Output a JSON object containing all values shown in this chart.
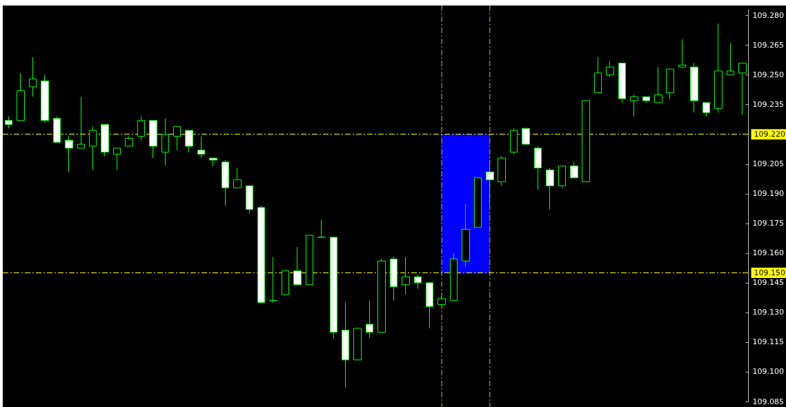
{
  "chart_data": {
    "type": "candlestick",
    "color": "#00ff00",
    "categories": [
      null,
      null,
      null,
      null,
      null,
      null,
      null,
      null,
      null,
      null,
      null,
      null,
      null,
      null,
      null,
      null,
      null,
      null,
      null,
      null,
      null,
      null,
      null,
      null,
      null,
      null,
      null,
      null,
      null,
      null,
      null,
      null,
      null,
      null,
      null,
      null,
      null,
      null,
      null,
      null,
      null,
      null,
      null,
      null,
      null,
      null,
      null,
      null,
      null,
      null,
      null,
      null,
      null,
      null,
      null,
      null,
      null,
      null,
      null,
      null,
      null,
      null
    ],
    "ohlc": [
      [
        109.227,
        109.229,
        109.223,
        109.225
      ],
      [
        109.227,
        109.251,
        109.227,
        109.242
      ],
      [
        109.244,
        109.259,
        109.239,
        109.248
      ],
      [
        109.247,
        109.25,
        109.226,
        109.227
      ],
      [
        109.228,
        109.229,
        109.216,
        109.216
      ],
      [
        109.217,
        109.219,
        109.201,
        109.213
      ],
      [
        109.213,
        109.239,
        109.213,
        109.215
      ],
      [
        109.214,
        109.224,
        109.202,
        109.222
      ],
      [
        109.225,
        109.225,
        109.209,
        109.211
      ],
      [
        109.21,
        109.213,
        109.202,
        109.213
      ],
      [
        109.214,
        109.219,
        109.214,
        109.218
      ],
      [
        109.219,
        109.229,
        109.217,
        109.227
      ],
      [
        109.227,
        109.227,
        109.208,
        109.214
      ],
      [
        109.211,
        109.228,
        109.204,
        109.22
      ],
      [
        109.219,
        109.224,
        109.212,
        109.224
      ],
      [
        109.222,
        109.222,
        109.211,
        109.214
      ],
      [
        109.212,
        109.219,
        109.208,
        109.21
      ],
      [
        109.208,
        109.208,
        109.204,
        109.207
      ],
      [
        109.206,
        109.207,
        109.184,
        109.193
      ],
      [
        109.193,
        109.203,
        109.193,
        109.197
      ],
      [
        109.194,
        109.194,
        109.18,
        109.182
      ],
      [
        109.183,
        109.184,
        109.135,
        109.135
      ],
      [
        109.136,
        109.158,
        109.135,
        109.136
      ],
      [
        109.139,
        109.151,
        109.139,
        109.151
      ],
      [
        109.151,
        109.163,
        109.144,
        109.144
      ],
      [
        109.144,
        109.169,
        109.144,
        109.169
      ],
      [
        109.168,
        109.177,
        109.168,
        109.168
      ],
      [
        109.168,
        109.168,
        109.117,
        109.12
      ],
      [
        109.121,
        109.135,
        109.092,
        109.106
      ],
      [
        109.106,
        109.122,
        109.106,
        109.122
      ],
      [
        109.124,
        109.136,
        109.117,
        109.12
      ],
      [
        109.12,
        109.157,
        109.12,
        109.156
      ],
      [
        109.157,
        109.158,
        109.136,
        109.143
      ],
      [
        109.144,
        109.158,
        109.139,
        109.148
      ],
      [
        109.148,
        109.149,
        109.142,
        109.145
      ],
      [
        109.145,
        109.145,
        109.122,
        109.133
      ],
      [
        109.134,
        109.138,
        109.134,
        109.137
      ],
      [
        109.136,
        109.16,
        109.136,
        109.157
      ],
      [
        109.156,
        109.185,
        109.153,
        109.172
      ],
      [
        109.173,
        109.198,
        109.173,
        109.198
      ],
      [
        109.201,
        109.205,
        109.185,
        109.197
      ],
      [
        109.196,
        109.209,
        109.194,
        109.208
      ],
      [
        109.211,
        109.223,
        109.21,
        109.222
      ],
      [
        109.223,
        109.223,
        109.215,
        109.215
      ],
      [
        109.213,
        109.214,
        109.192,
        109.203
      ],
      [
        109.202,
        109.203,
        109.182,
        109.194
      ],
      [
        109.194,
        109.204,
        109.193,
        109.204
      ],
      [
        109.204,
        109.206,
        109.198,
        109.198
      ],
      [
        109.196,
        109.237,
        109.196,
        109.237
      ],
      [
        109.241,
        109.259,
        109.241,
        109.251
      ],
      [
        109.25,
        109.257,
        109.249,
        109.254
      ],
      [
        109.256,
        109.256,
        109.236,
        109.238
      ],
      [
        109.237,
        109.24,
        109.229,
        109.239
      ],
      [
        109.239,
        109.239,
        109.236,
        109.237
      ],
      [
        109.236,
        109.254,
        109.236,
        109.24
      ],
      [
        109.241,
        109.253,
        109.238,
        109.253
      ],
      [
        109.254,
        109.268,
        109.254,
        109.255
      ],
      [
        109.254,
        109.256,
        109.231,
        109.237
      ],
      [
        109.236,
        109.236,
        109.229,
        109.231
      ],
      [
        109.233,
        109.276,
        109.231,
        109.252
      ],
      [
        109.25,
        109.266,
        109.25,
        109.252
      ],
      [
        109.251,
        109.256,
        109.23,
        109.256
      ]
    ],
    "ylim": [
      109.085,
      109.283
    ],
    "yticks": [
      {
        "value": 109.085,
        "label": "109.085"
      },
      {
        "value": 109.1,
        "label": "109.100"
      },
      {
        "value": 109.115,
        "label": "109.115"
      },
      {
        "value": 109.13,
        "label": "109.130"
      },
      {
        "value": 109.145,
        "label": "109.145"
      },
      {
        "value": 109.16,
        "label": "109.160"
      },
      {
        "value": 109.175,
        "label": "109.175"
      },
      {
        "value": 109.19,
        "label": "109.190"
      },
      {
        "value": 109.205,
        "label": "109.205"
      },
      {
        "value": 109.235,
        "label": "109.235"
      },
      {
        "value": 109.25,
        "label": "109.250"
      },
      {
        "value": 109.265,
        "label": "109.265"
      },
      {
        "value": 109.28,
        "label": "109.280"
      }
    ],
    "tick_labels": "y",
    "line_style": "dashed",
    "ref_lines": [
      {
        "axis": "y",
        "value": 109.22,
        "label": "109.220",
        "color": "#ffff00"
      },
      {
        "axis": "y",
        "value": 109.15,
        "label": "109.150",
        "color": "#ffff00"
      }
    ]
  }
}
